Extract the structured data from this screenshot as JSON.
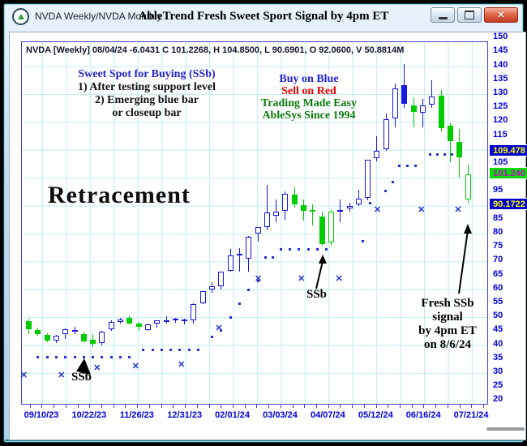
{
  "window": {
    "title": "NVDA Weekly/NVDA Monthly",
    "header_title": "AbleTrend Fresh Sweet Sport Signal by 4pm ET",
    "controls": {
      "minimize": "minimize",
      "maximize": "maximize",
      "close_glyph": "✕"
    }
  },
  "info_line": "NVDA [Weekly] 08/04/24  -6.0431 C 101.2268, H 104.8500, L 90.6901, O 92.0600, V 50.8814M",
  "annotations": {
    "sweet_spot": {
      "title": "Sweet Spot for Buying (SSb)",
      "lines": [
        "1) After testing support level",
        "2) Emerging blue bar",
        "or closeup bar"
      ]
    },
    "slogan": [
      {
        "text": "Buy on Blue",
        "color": "#2222dd"
      },
      {
        "text": "Sell on Red",
        "color": "#ee0000"
      },
      {
        "text": "Trading Made Easy",
        "color": "#0a7a0a"
      },
      {
        "text": "AbleSys Since 1994",
        "color": "#0a7a0a"
      }
    ],
    "retracement": "Retracement",
    "ssb_low": "SSb",
    "ssb_mid": "SSb",
    "fresh_ssb_lines": [
      "Fresh SSb",
      "signal",
      "by 4pm ET",
      "on 8/6/24"
    ]
  },
  "chart_data": {
    "type": "candlestick",
    "symbol": "NVDA",
    "timeframe": "Weekly",
    "ylabel": "Price",
    "y_ticks": [
      150,
      145,
      140,
      135,
      130,
      125,
      120,
      115,
      105,
      95,
      85,
      80,
      75,
      70,
      65,
      60,
      55,
      50,
      45,
      40,
      35,
      30,
      25,
      20
    ],
    "x_ticks": [
      "09/10/23",
      "10/22/23",
      "11/26/23",
      "12/31/23",
      "02/01/24",
      "03/03/24",
      "04/07/24",
      "05/12/24",
      "06/16/24",
      "07/21/24"
    ],
    "price_badges": [
      {
        "value": "109.478",
        "price": 109.478,
        "bg": "#0000d0",
        "fg": "#ffff00"
      },
      {
        "value": "101.240",
        "price": 101.24,
        "bg": "#00dd00",
        "fg": "#d000d0"
      },
      {
        "value": "90.1722",
        "price": 90.1722,
        "bg": "#0000d0",
        "fg": "#ffff00"
      }
    ],
    "colors": {
      "up": "#1818dd",
      "down": "#00cc00",
      "dots": "#2233cc",
      "axis_text": "#0000e0"
    },
    "marker_glyph": "✕",
    "candles": [
      [
        "09/03/23",
        48.5,
        49.4,
        44.0,
        45.6,
        "green",
        "solid"
      ],
      [
        "09/10/23",
        45.5,
        46.4,
        43.4,
        43.9,
        "green",
        "solid"
      ],
      [
        "09/17/23",
        43.8,
        44.3,
        40.9,
        41.6,
        "green",
        "solid"
      ],
      [
        "09/24/23",
        41.5,
        43.6,
        40.7,
        43.5,
        "blue",
        "hollow"
      ],
      [
        "10/01/23",
        44.0,
        45.9,
        42.2,
        45.7,
        "blue",
        "hollow"
      ],
      [
        "10/08/23",
        45.3,
        46.6,
        43.9,
        45.4,
        "blue",
        "hollow"
      ],
      [
        "10/15/23",
        44.0,
        44.7,
        41.0,
        41.4,
        "green",
        "solid"
      ],
      [
        "10/22/23",
        41.8,
        43.9,
        39.2,
        40.5,
        "green",
        "solid"
      ],
      [
        "10/29/23",
        40.8,
        45.0,
        39.8,
        44.9,
        "blue",
        "hollow"
      ],
      [
        "11/05/23",
        45.7,
        48.9,
        45.2,
        48.3,
        "blue",
        "hollow"
      ],
      [
        "11/12/23",
        48.3,
        49.9,
        47.6,
        49.3,
        "blue",
        "hollow"
      ],
      [
        "11/19/23",
        49.8,
        50.5,
        47.3,
        47.7,
        "green",
        "solid"
      ],
      [
        "11/26/23",
        47.8,
        48.4,
        45.1,
        46.7,
        "green",
        "solid"
      ],
      [
        "12/03/23",
        45.5,
        47.6,
        45.2,
        47.5,
        "blue",
        "hollow"
      ],
      [
        "12/10/23",
        47.7,
        49.0,
        46.3,
        48.9,
        "blue",
        "hollow"
      ],
      [
        "12/17/23",
        48.7,
        50.4,
        47.7,
        48.8,
        "blue",
        "hollow"
      ],
      [
        "12/24/23",
        49.0,
        49.8,
        48.1,
        49.5,
        "blue",
        "hollow"
      ],
      [
        "12/31/23",
        49.2,
        49.5,
        47.5,
        49.1,
        "blue",
        "hollow"
      ],
      [
        "01/07/24",
        49.0,
        54.9,
        47.6,
        54.7,
        "blue",
        "hollow"
      ],
      [
        "01/14/24",
        55.1,
        59.5,
        54.6,
        59.4,
        "blue",
        "hollow"
      ],
      [
        "01/21/24",
        60.0,
        62.5,
        58.7,
        61.0,
        "blue",
        "hollow"
      ],
      [
        "01/28/24",
        61.2,
        66.3,
        59.9,
        66.2,
        "blue",
        "hollow"
      ],
      [
        "02/04/24",
        66.7,
        74.6,
        66.3,
        72.1,
        "blue",
        "hollow"
      ],
      [
        "02/11/24",
        72.6,
        74.7,
        66.2,
        72.6,
        "blue",
        "hollow"
      ],
      [
        "02/18/24",
        71.0,
        79.0,
        66.3,
        78.8,
        "blue",
        "hollow"
      ],
      [
        "02/25/24",
        79.9,
        82.3,
        77.2,
        82.3,
        "blue",
        "hollow"
      ],
      [
        "03/03/24",
        82.4,
        97.4,
        81.1,
        87.5,
        "blue",
        "hollow"
      ],
      [
        "03/10/24",
        86.4,
        92.3,
        84.1,
        87.9,
        "blue",
        "hollow"
      ],
      [
        "03/17/24",
        88.0,
        95.0,
        85.0,
        94.3,
        "blue",
        "hollow"
      ],
      [
        "03/24/24",
        94.0,
        96.7,
        89.2,
        90.4,
        "green",
        "solid"
      ],
      [
        "03/31/24",
        90.3,
        92.2,
        84.6,
        88.0,
        "green",
        "solid"
      ],
      [
        "04/07/24",
        88.4,
        90.6,
        82.9,
        88.1,
        "green",
        "solid"
      ],
      [
        "04/14/24",
        86.0,
        87.7,
        75.6,
        76.2,
        "green",
        "solid"
      ],
      [
        "04/21/24",
        76.7,
        88.5,
        75.7,
        87.7,
        "green",
        "hollow"
      ],
      [
        "04/28/24",
        87.8,
        92.2,
        84.0,
        88.5,
        "blue",
        "hollow"
      ],
      [
        "05/05/24",
        89.0,
        91.0,
        87.7,
        89.9,
        "blue",
        "hollow"
      ],
      [
        "05/12/24",
        90.4,
        95.8,
        89.8,
        92.5,
        "blue",
        "hollow"
      ],
      [
        "05/19/24",
        92.8,
        106.5,
        92.0,
        106.4,
        "blue",
        "hollow"
      ],
      [
        "05/26/24",
        107.0,
        114.9,
        106.0,
        109.6,
        "blue",
        "hollow"
      ],
      [
        "06/02/24",
        110.2,
        122.9,
        109.7,
        120.9,
        "blue",
        "hollow"
      ],
      [
        "06/09/24",
        121.2,
        133.7,
        118.0,
        131.9,
        "blue",
        "hollow"
      ],
      [
        "06/16/24",
        133.2,
        140.8,
        125.0,
        126.6,
        "blue",
        "solid"
      ],
      [
        "06/23/24",
        126.0,
        128.9,
        118.0,
        123.5,
        "green",
        "solid"
      ],
      [
        "06/30/24",
        123.2,
        128.3,
        118.1,
        125.8,
        "blue",
        "hollow"
      ],
      [
        "07/07/24",
        126.3,
        134.9,
        125.1,
        129.2,
        "blue",
        "hollow"
      ],
      [
        "07/14/24",
        129.3,
        131.4,
        116.6,
        117.9,
        "green",
        "solid"
      ],
      [
        "07/21/24",
        118.8,
        119.5,
        105.6,
        113.1,
        "green",
        "solid"
      ],
      [
        "07/28/24",
        112.9,
        117.6,
        100.0,
        107.3,
        "green",
        "solid"
      ],
      [
        "08/04/24",
        92.06,
        104.85,
        90.69,
        101.2268,
        "green",
        "hollow"
      ]
    ],
    "support_dots": [
      [
        1,
        35.8
      ],
      [
        2,
        35.8
      ],
      [
        3,
        35.8
      ],
      [
        4,
        35.8
      ],
      [
        5,
        35.8
      ],
      [
        6,
        35.8
      ],
      [
        7,
        35.8
      ],
      [
        8,
        35.8
      ],
      [
        9,
        35.8
      ],
      [
        10,
        35.8
      ],
      [
        11,
        35.8
      ],
      [
        12.5,
        38.3
      ],
      [
        13.5,
        38.3
      ],
      [
        14.5,
        38.3
      ],
      [
        15.5,
        38.3
      ],
      [
        16.5,
        38.3
      ],
      [
        17.5,
        38.3
      ],
      [
        18.5,
        38.3
      ],
      [
        20,
        43
      ],
      [
        21,
        45.5
      ],
      [
        22,
        50
      ],
      [
        23,
        55
      ],
      [
        24,
        60
      ],
      [
        25,
        63
      ],
      [
        25.8,
        71.5
      ],
      [
        26.6,
        71.5
      ],
      [
        27.5,
        74.5
      ],
      [
        28.5,
        74.5
      ],
      [
        29.5,
        74.5
      ],
      [
        30.5,
        74.5
      ],
      [
        31.5,
        74.5
      ],
      [
        32.5,
        74.5
      ],
      [
        36.5,
        77.5
      ],
      [
        37.3,
        91
      ],
      [
        38.9,
        95.3
      ],
      [
        39.7,
        98.6
      ],
      [
        40.4,
        104.5
      ],
      [
        41.3,
        104.5
      ],
      [
        42.2,
        104.5
      ],
      [
        43.8,
        108.5
      ],
      [
        44.6,
        108.5
      ],
      [
        45.4,
        108.5
      ],
      [
        46.2,
        108.5
      ]
    ],
    "x_marks": [
      [
        -0.5,
        29
      ],
      [
        3.6,
        29
      ],
      [
        7.5,
        31.7
      ],
      [
        11.7,
        32.3
      ],
      [
        16.7,
        32.9
      ],
      [
        20.8,
        46
      ],
      [
        25.1,
        63.7
      ],
      [
        29.8,
        63.7
      ],
      [
        33.9,
        63.7
      ],
      [
        38.1,
        88.4
      ],
      [
        42.9,
        88.4
      ],
      [
        46.9,
        88.4
      ]
    ]
  }
}
